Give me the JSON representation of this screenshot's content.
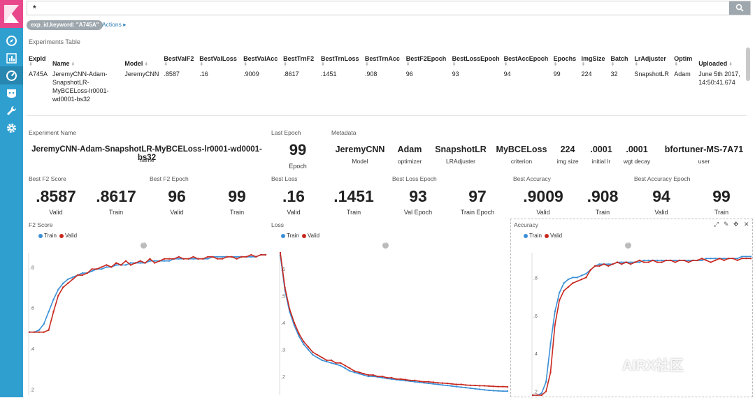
{
  "search": {
    "value": "*"
  },
  "filter": {
    "pill": "exp_id.keyword: \"A745A\"",
    "actions": "Actions"
  },
  "table": {
    "title": "Experiments Table",
    "columns": [
      "ExpId",
      "Name",
      "Model",
      "BestValF2",
      "BestValLoss",
      "BestValAcc",
      "BestTrnF2",
      "BestTrnLoss",
      "BestTrnAcc",
      "BestF2Epoch",
      "BestLossEpoch",
      "BestAccEpoch",
      "Epochs",
      "ImgSize",
      "Batch",
      "LrAdjuster",
      "Optim",
      "Uploaded"
    ],
    "row": [
      "A745A",
      "JeremyCNN-Adam-SnapshotLR-MyBCELoss-lr0001-wd0001-bs32",
      "JeremyCNN",
      ".8587",
      ".16",
      ".9009",
      ".8617",
      ".1451",
      ".908",
      "96",
      "93",
      "94",
      "99",
      "224",
      "32",
      "SnapshotLR",
      "Adam",
      "June 5th 2017, 14:50:41.674"
    ]
  },
  "experiment_name": {
    "title": "Experiment Name",
    "value": "JeremyCNN-Adam-SnapshotLR-MyBCELoss-lr0001-wd0001-bs32",
    "sub": "name"
  },
  "last_epoch": {
    "title": "Last Epoch",
    "value": "99",
    "sub": "Epoch"
  },
  "metadata": {
    "title": "Metadata",
    "items": [
      {
        "value": "JeremyCNN",
        "sub": "Model"
      },
      {
        "value": "Adam",
        "sub": "optimizer"
      },
      {
        "value": "SnapshotLR",
        "sub": "LRAdjuster"
      },
      {
        "value": "MyBCELoss",
        "sub": "criterion"
      },
      {
        "value": "224",
        "sub": "img size"
      },
      {
        "value": ".0001",
        "sub": "initial lr"
      },
      {
        "value": ".0001",
        "sub": "wgt decay"
      },
      {
        "value": "bfortuner-MS-7A71",
        "sub": "user"
      }
    ]
  },
  "metrics": [
    {
      "title": "Best F2 Score",
      "items": [
        {
          "value": ".8587",
          "sub": "Valid"
        },
        {
          "value": ".8617",
          "sub": "Train"
        }
      ]
    },
    {
      "title": "Best F2 Epoch",
      "items": [
        {
          "value": "96",
          "sub": "Valid"
        },
        {
          "value": "99",
          "sub": "Train"
        }
      ]
    },
    {
      "title": "Best Loss",
      "items": [
        {
          "value": ".16",
          "sub": "Valid"
        },
        {
          "value": ".1451",
          "sub": "Train"
        }
      ]
    },
    {
      "title": "Best Loss Epoch",
      "items": [
        {
          "value": "93",
          "sub": "Val Epoch"
        },
        {
          "value": "97",
          "sub": "Train Epoch"
        }
      ]
    },
    {
      "title": "Best Accuracy",
      "items": [
        {
          "value": ".9009",
          "sub": "Valid"
        },
        {
          "value": ".908",
          "sub": "Train"
        }
      ]
    },
    {
      "title": "Best Accuracy Epoch",
      "items": [
        {
          "value": "94",
          "sub": "Valid"
        },
        {
          "value": "99",
          "sub": "Train"
        }
      ]
    }
  ],
  "colors": {
    "train": "#3a8fd6",
    "valid": "#c8281e",
    "sidebar": "#2f9fd0",
    "logo": "#e8488b"
  },
  "watermark": "AIRX社区",
  "chart_data": [
    {
      "type": "line",
      "title": "F2 Score",
      "legend": [
        "Train",
        "Valid"
      ],
      "ylim": [
        0.17,
        0.87
      ],
      "yticks": [
        ".2",
        ".4",
        ".6",
        ".8"
      ],
      "ytick_values": [
        0.2,
        0.4,
        0.6,
        0.8
      ],
      "series": [
        {
          "name": "Train",
          "values": [
            0.48,
            0.48,
            0.49,
            0.52,
            0.58,
            0.64,
            0.69,
            0.72,
            0.74,
            0.75,
            0.76,
            0.77,
            0.77,
            0.78,
            0.79,
            0.79,
            0.8,
            0.8,
            0.81,
            0.81,
            0.81,
            0.82,
            0.82,
            0.82,
            0.82,
            0.83,
            0.83,
            0.83,
            0.83,
            0.83,
            0.84,
            0.84,
            0.84,
            0.84,
            0.84,
            0.84,
            0.84,
            0.84,
            0.85,
            0.85,
            0.85,
            0.85,
            0.85,
            0.85,
            0.85,
            0.85,
            0.85,
            0.85,
            0.86,
            0.86
          ]
        },
        {
          "name": "Valid",
          "values": [
            0.48,
            0.48,
            0.48,
            0.48,
            0.49,
            0.58,
            0.66,
            0.7,
            0.72,
            0.74,
            0.76,
            0.76,
            0.77,
            0.79,
            0.79,
            0.8,
            0.81,
            0.8,
            0.82,
            0.81,
            0.83,
            0.81,
            0.82,
            0.83,
            0.82,
            0.84,
            0.82,
            0.83,
            0.84,
            0.84,
            0.84,
            0.85,
            0.84,
            0.84,
            0.85,
            0.84,
            0.84,
            0.85,
            0.85,
            0.84,
            0.84,
            0.85,
            0.85,
            0.84,
            0.85,
            0.85,
            0.86,
            0.85,
            0.86,
            0.86
          ]
        }
      ]
    },
    {
      "type": "line",
      "title": "Loss",
      "legend": [
        "Train",
        "Valid"
      ],
      "ylim": [
        0.13,
        0.66
      ],
      "yticks": [
        ".2",
        ".3",
        ".4",
        ".5",
        ".6"
      ],
      "ytick_values": [
        0.2,
        0.3,
        0.4,
        0.5,
        0.6
      ],
      "series": [
        {
          "name": "Train",
          "values": [
            0.65,
            0.52,
            0.44,
            0.39,
            0.35,
            0.32,
            0.3,
            0.28,
            0.27,
            0.26,
            0.255,
            0.25,
            0.245,
            0.24,
            0.23,
            0.22,
            0.215,
            0.21,
            0.205,
            0.2,
            0.2,
            0.198,
            0.195,
            0.192,
            0.19,
            0.188,
            0.186,
            0.184,
            0.182,
            0.18,
            0.178,
            0.176,
            0.174,
            0.172,
            0.17,
            0.168,
            0.166,
            0.164,
            0.162,
            0.16,
            0.158,
            0.156,
            0.154,
            0.152,
            0.15,
            0.148,
            0.147,
            0.146,
            0.145,
            0.145
          ]
        },
        {
          "name": "Valid",
          "values": [
            0.66,
            0.53,
            0.45,
            0.4,
            0.36,
            0.33,
            0.31,
            0.29,
            0.28,
            0.27,
            0.26,
            0.26,
            0.25,
            0.25,
            0.24,
            0.23,
            0.22,
            0.215,
            0.21,
            0.205,
            0.205,
            0.2,
            0.2,
            0.195,
            0.195,
            0.19,
            0.19,
            0.188,
            0.185,
            0.185,
            0.182,
            0.18,
            0.18,
            0.178,
            0.176,
            0.175,
            0.174,
            0.172,
            0.17,
            0.17,
            0.168,
            0.167,
            0.166,
            0.165,
            0.165,
            0.164,
            0.163,
            0.162,
            0.162,
            0.161
          ]
        }
      ]
    },
    {
      "type": "line",
      "title": "Accuracy",
      "legend": [
        "Train",
        "Valid"
      ],
      "ylim": [
        0.18,
        0.93
      ],
      "yticks": [
        ".2",
        ".4",
        ".6",
        ".8"
      ],
      "ytick_values": [
        0.2,
        0.4,
        0.6,
        0.8
      ],
      "series": [
        {
          "name": "Train",
          "values": [
            0.18,
            0.18,
            0.19,
            0.25,
            0.45,
            0.62,
            0.72,
            0.77,
            0.79,
            0.8,
            0.8,
            0.81,
            0.82,
            0.84,
            0.86,
            0.87,
            0.87,
            0.87,
            0.87,
            0.88,
            0.88,
            0.88,
            0.88,
            0.88,
            0.88,
            0.89,
            0.89,
            0.89,
            0.89,
            0.89,
            0.89,
            0.89,
            0.89,
            0.89,
            0.89,
            0.89,
            0.89,
            0.89,
            0.89,
            0.9,
            0.9,
            0.9,
            0.9,
            0.9,
            0.9,
            0.9,
            0.9,
            0.91,
            0.91,
            0.91
          ]
        },
        {
          "name": "Valid",
          "values": [
            0.18,
            0.18,
            0.18,
            0.2,
            0.3,
            0.55,
            0.68,
            0.73,
            0.75,
            0.77,
            0.78,
            0.79,
            0.8,
            0.84,
            0.86,
            0.86,
            0.87,
            0.86,
            0.87,
            0.88,
            0.87,
            0.88,
            0.87,
            0.88,
            0.89,
            0.88,
            0.88,
            0.89,
            0.88,
            0.88,
            0.89,
            0.89,
            0.88,
            0.89,
            0.89,
            0.88,
            0.89,
            0.89,
            0.9,
            0.89,
            0.88,
            0.89,
            0.9,
            0.89,
            0.9,
            0.9,
            0.89,
            0.9,
            0.9,
            0.9
          ]
        }
      ]
    }
  ]
}
